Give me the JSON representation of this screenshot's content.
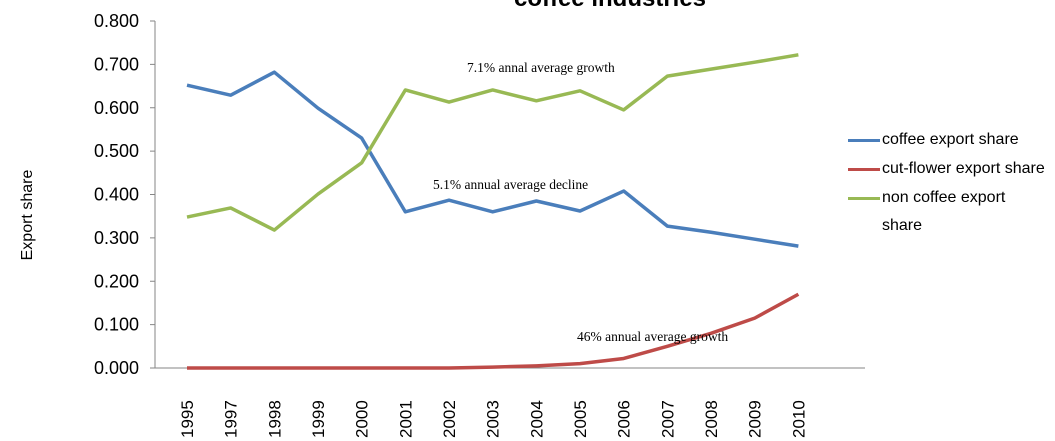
{
  "chart_data": {
    "type": "line",
    "title": "coffee industries",
    "y_label": "Export share",
    "categories": [
      "1995",
      "1997",
      "1998",
      "1999",
      "2000",
      "2001",
      "2002",
      "2003",
      "2004",
      "2005",
      "2006",
      "2007",
      "2008",
      "2009",
      "2010"
    ],
    "series": [
      {
        "name": "coffee export share",
        "color": "#4a7ebb",
        "values": [
          0.652,
          0.629,
          0.682,
          0.599,
          0.53,
          0.36,
          0.387,
          0.36,
          0.385,
          0.362,
          0.408,
          0.327,
          0.313,
          0.297,
          0.281
        ]
      },
      {
        "name": "cut-flower export share",
        "color": "#be4b48",
        "values": [
          0,
          0,
          0,
          0,
          0,
          0,
          0,
          0.002,
          0.005,
          0.01,
          0.022,
          0.05,
          0.08,
          0.115,
          0.17
        ]
      },
      {
        "name": "non coffee export share",
        "color": "#98b954",
        "values": [
          0.348,
          0.369,
          0.318,
          0.401,
          0.473,
          0.641,
          0.613,
          0.641,
          0.616,
          0.639,
          0.595,
          0.673,
          0.689,
          0.705,
          0.722
        ]
      }
    ],
    "ylim": [
      0,
      0.8
    ],
    "yticks": [
      {
        "value": 0,
        "label": "0.000"
      },
      {
        "value": 0.1,
        "label": "0.100"
      },
      {
        "value": 0.2,
        "label": "0.200"
      },
      {
        "value": 0.3,
        "label": "0.300"
      },
      {
        "value": 0.4,
        "label": "0.400"
      },
      {
        "value": 0.5,
        "label": "0.500"
      },
      {
        "value": 0.6,
        "label": "0.600"
      },
      {
        "value": 0.7,
        "label": "0.700"
      },
      {
        "value": 0.8,
        "label": "0.800"
      }
    ],
    "grid": false,
    "legend": "right",
    "annotations": [
      "7.1% annal average growth",
      "5.1%  annual average decline",
      "46%   annual average growth"
    ]
  }
}
